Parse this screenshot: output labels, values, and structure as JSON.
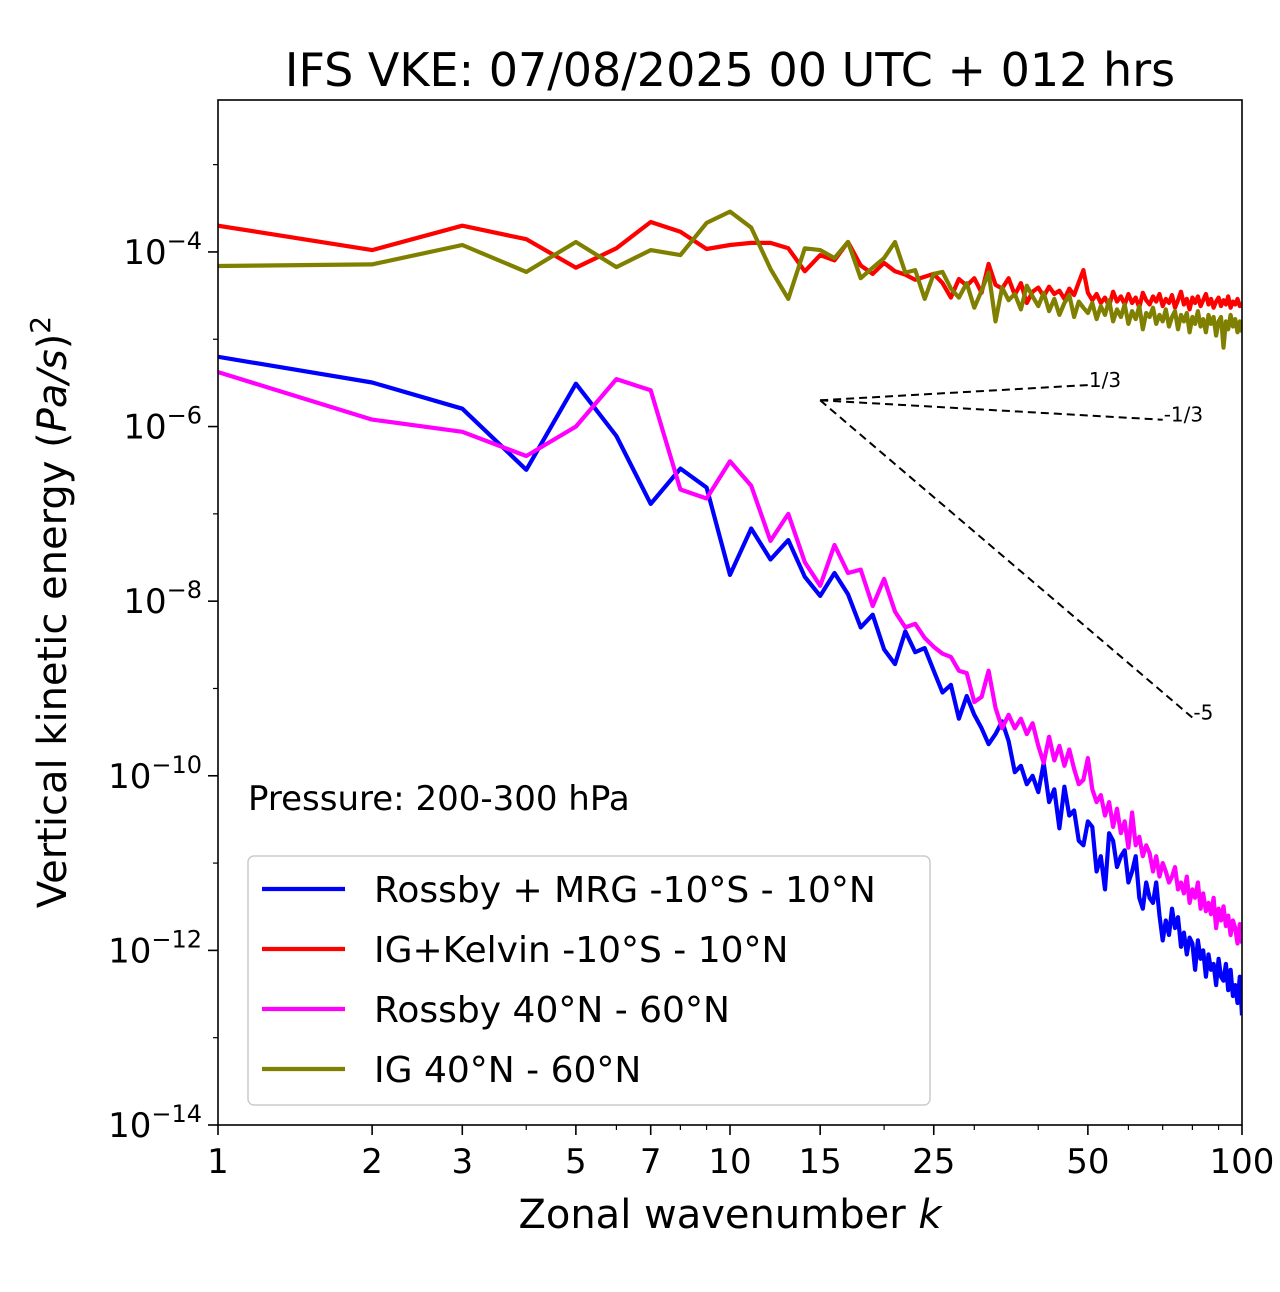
{
  "chart_data": {
    "type": "line",
    "title": "IFS VKE: 07/08/2025 00 UTC + 012 hrs",
    "xlabel": "Zonal wavenumber k",
    "ylabel": "Vertical kinetic energy (Pa/s)^2",
    "xscale": "log",
    "yscale": "log",
    "xlim": [
      1,
      100
    ],
    "ylim": [
      1e-14,
      0.0055
    ],
    "x_ticks": [
      1,
      2,
      3,
      5,
      7,
      10,
      15,
      25,
      50,
      100
    ],
    "x_tick_labels": [
      "1",
      "2",
      "3",
      "5",
      "7",
      "10",
      "15",
      "25",
      "50",
      "100"
    ],
    "y_ticks": [
      1e-14,
      1e-12,
      1e-10,
      1e-08,
      1e-06,
      0.0001
    ],
    "y_tick_exponents": [
      "−14",
      "−12",
      "−10",
      "−8",
      "−6",
      "−4"
    ],
    "y_tick_base": "10",
    "annotation": "Pressure: 200-300 hPa",
    "legend_position": "lower-left",
    "reference_lines": [
      {
        "slope": "1/3",
        "label": "1/3",
        "k_start": 15,
        "k_end": 50,
        "y_start": 2e-06
      },
      {
        "slope": "-1/3",
        "label": "-1/3",
        "k_start": 15,
        "k_end": 70,
        "y_start": 2e-06
      },
      {
        "slope": "-5",
        "label": "-5",
        "k_start": 15,
        "k_end": 80,
        "y_start": 2e-06
      }
    ],
    "series": [
      {
        "name": "Rossby + MRG -10°S - 10°N",
        "color": "#0000ff",
        "values": [
          6.3e-06,
          3.2e-06,
          1.6e-06,
          3.2e-07,
          3.1e-06,
          7.8e-07,
          1.3e-07,
          3.3e-07,
          2e-07,
          2e-08,
          6.8e-08,
          3e-08,
          5e-08,
          1.9e-08,
          1.15e-08,
          2.1e-08,
          1.2e-08,
          5e-09,
          7e-09,
          2.8e-09,
          1.9e-09,
          4.5e-09,
          2.6e-09,
          2.9e-09,
          1.6e-09,
          9e-10,
          1.1e-09,
          4.5e-10,
          8.2e-10,
          5e-10,
          3.5e-10,
          2.3e-10,
          3e-10,
          4.2e-10,
          2.5e-10,
          1.1e-10,
          1.3e-10,
          8e-11,
          1e-10,
          6.5e-11,
          1.4e-10,
          5e-11,
          7e-11,
          2.5e-11,
          7.5e-11,
          3.5e-11,
          4e-11,
          1.8e-11,
          1.6e-11,
          3e-11,
          2.6e-11,
          8e-12,
          1.2e-11,
          5e-12,
          2.2e-11,
          1.8e-11,
          9e-12,
          1.2e-11,
          1.4e-11,
          6e-12,
          8e-12,
          1.2e-11,
          4e-12,
          3e-12,
          6e-12,
          4e-12,
          3.5e-12,
          6e-12,
          2.5e-12,
          1.3e-12,
          2.2e-12,
          1.5e-12,
          3e-12,
          1.8e-12,
          2.4e-12,
          1.1e-12,
          1.6e-12,
          9e-13,
          1.4e-12,
          1.2e-12,
          6e-13,
          1.3e-12,
          8e-13,
          1e-12,
          5e-13,
          9e-13,
          6e-13,
          7e-13,
          4e-13,
          8e-13,
          5e-13,
          4.5e-13,
          7e-13,
          3.5e-13,
          6e-13,
          3e-13,
          4e-13,
          2.5e-13,
          5e-13,
          1.8e-13
        ]
      },
      {
        "name": "IG+Kelvin -10°S - 10°N",
        "color": "#ff0000",
        "values": [
          0.0002,
          0.000105,
          0.0002,
          0.00014,
          6.6e-05,
          0.00011,
          0.00022,
          0.00017,
          0.000108,
          0.00012,
          0.000127,
          0.000127,
          0.00011,
          6e-05,
          9.2e-05,
          8e-05,
          0.00013,
          7e-05,
          5.6e-05,
          7.5e-05,
          6e-05,
          5.5e-05,
          4.8e-05,
          5.2e-05,
          5.6e-05,
          4.4e-05,
          3e-05,
          4.9e-05,
          4.1e-05,
          5e-05,
          3.4e-05,
          7.3e-05,
          4.2e-05,
          3.8e-05,
          5e-05,
          3.2e-05,
          4.4e-05,
          2.6e-05,
          3.5e-05,
          3.9e-05,
          3.1e-05,
          4e-05,
          3.3e-05,
          3.6e-05,
          2.9e-05,
          3.8e-05,
          3.2e-05,
          4.5e-05,
          6.2e-05,
          3.4e-05,
          2.8e-05,
          3.3e-05,
          2.6e-05,
          3e-05,
          2.4e-05,
          3.5e-05,
          2.7e-05,
          3.1e-05,
          2.5e-05,
          3.3e-05,
          2.6e-05,
          3e-05,
          2.3e-05,
          3.4e-05,
          2.8e-05,
          2.5e-05,
          3.1e-05,
          2.7e-05,
          3.3e-05,
          2.4e-05,
          2.9e-05,
          2.6e-05,
          3.2e-05,
          2.3e-05,
          2.8e-05,
          3.5e-05,
          2.5e-05,
          2.9e-05,
          2.2e-05,
          3e-05,
          2.6e-05,
          3.1e-05,
          2.4e-05,
          2.8e-05,
          3.3e-05,
          2.5e-05,
          2.9e-05,
          2.3e-05,
          2.7e-05,
          3e-05,
          2.4e-05,
          2.8e-05,
          2.5e-05,
          3.1e-05,
          2.3e-05,
          2.7e-05,
          2.5e-05,
          2.9e-05,
          2.4e-05,
          2.6e-05
        ]
      },
      {
        "name": "Rossby 40°N - 60°N",
        "color": "#ff00ff",
        "values": [
          4.2e-06,
          1.2e-06,
          8.7e-07,
          4.6e-07,
          1e-06,
          3.5e-06,
          2.6e-06,
          1.9e-07,
          1.5e-07,
          4e-07,
          2.1e-07,
          4.9e-08,
          1e-07,
          2.8e-08,
          1.5e-08,
          4.4e-08,
          2.1e-08,
          2.3e-08,
          8.8e-09,
          1.8e-08,
          7.6e-09,
          5e-09,
          5.5e-09,
          3.8e-09,
          3e-09,
          2.5e-09,
          2.3e-09,
          1.6e-09,
          1.5e-09,
          7e-10,
          8e-10,
          1.6e-09,
          6e-10,
          3.5e-10,
          5e-10,
          3.5e-10,
          4.5e-10,
          3e-10,
          4e-10,
          2.2e-10,
          1.4e-10,
          2.8e-10,
          1.5e-10,
          2.2e-10,
          1.3e-10,
          2e-10,
          1.2e-10,
          8e-11,
          9e-11,
          1.6e-10,
          7e-11,
          5e-11,
          6e-11,
          3.5e-11,
          5e-11,
          2.6e-11,
          4.2e-11,
          2.2e-11,
          3e-11,
          1.5e-11,
          3.8e-11,
          1.6e-11,
          2e-11,
          1.2e-11,
          1.6e-11,
          1.3e-11,
          8e-12,
          1.2e-11,
          7e-12,
          1e-11,
          8e-12,
          6e-12,
          7e-12,
          9e-12,
          5e-12,
          6e-12,
          4.5e-12,
          7e-12,
          3.5e-12,
          5e-12,
          4e-12,
          6e-12,
          3e-12,
          4.5e-12,
          2.8e-12,
          3.5e-12,
          2.6e-12,
          4e-12,
          1.8e-12,
          3e-12,
          2.2e-12,
          3.2e-12,
          1.9e-12,
          2.5e-12,
          1.5e-12,
          2.2e-12,
          1.8e-12,
          1.2e-12,
          2e-12,
          1.2e-12
        ]
      },
      {
        "name": "IG 40°N - 60°N",
        "color": "#808000",
        "values": [
          6.9e-05,
          7.2e-05,
          0.00012,
          5.9e-05,
          0.00013,
          6.7e-05,
          0.000105,
          9.2e-05,
          0.000215,
          0.00029,
          0.00019,
          6.4e-05,
          2.9e-05,
          0.00011,
          0.000105,
          8.5e-05,
          0.00013,
          5e-05,
          6.6e-05,
          8.5e-05,
          0.00013,
          5.8e-05,
          6.2e-05,
          2.9e-05,
          5.6e-05,
          5.9e-05,
          3.8e-05,
          3e-05,
          4.4e-05,
          2.3e-05,
          3.6e-05,
          5.8e-05,
          1.6e-05,
          3.9e-05,
          2.8e-05,
          3.3e-05,
          2.2e-05,
          4.1e-05,
          3.1e-05,
          2.4e-05,
          3.4e-05,
          2.1e-05,
          2.9e-05,
          1.9e-05,
          2.6e-05,
          3.2e-05,
          1.8e-05,
          2.7e-05,
          2.3e-05,
          2e-05,
          2.6e-05,
          1.7e-05,
          2.4e-05,
          1.9e-05,
          2.8e-05,
          1.6e-05,
          2.2e-05,
          1.8e-05,
          2.5e-05,
          1.5e-05,
          2.1e-05,
          1.7e-05,
          2.4e-05,
          1.3e-05,
          2e-05,
          1.8e-05,
          2.3e-05,
          1.5e-05,
          1.9e-05,
          1.6e-05,
          2.2e-05,
          1.4e-05,
          1.8e-05,
          2.1e-05,
          1.3e-05,
          1.9e-05,
          1.6e-05,
          2e-05,
          1.2e-05,
          1.8e-05,
          1.5e-05,
          2.1e-05,
          1.4e-05,
          1.7e-05,
          1.2e-05,
          1.9e-05,
          1.5e-05,
          1.8e-05,
          1.1e-05,
          1.6e-05,
          1.8e-05,
          8e-06,
          1.6e-05,
          1.3e-05,
          1.9e-05,
          1.4e-05,
          1.7e-05,
          1.2e-05,
          1.6e-05,
          1.2e-05
        ]
      }
    ]
  }
}
